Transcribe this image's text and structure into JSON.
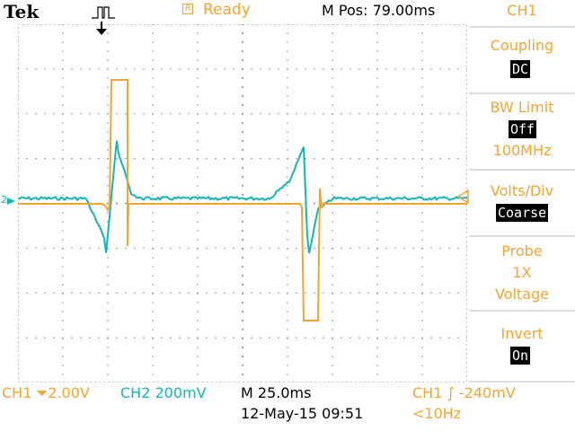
{
  "header": {
    "brand": "Tek",
    "ready_icon": "R",
    "status": "Ready",
    "position": "M Pos: 79.00ms"
  },
  "menu": {
    "title": "CH1",
    "coupling": {
      "label": "Coupling",
      "value": "DC"
    },
    "bw_limit": {
      "label": "BW Limit",
      "value": "Off",
      "sub": "100MHz"
    },
    "volts_div": {
      "label": "Volts/Div",
      "value": "Coarse"
    },
    "probe": {
      "label": "Probe",
      "line2": "1X",
      "line3": "Voltage"
    },
    "invert": {
      "label": "Invert",
      "value": "On"
    }
  },
  "footer": {
    "ch1_scale": "CH1 ⏷2.00V",
    "ch2_scale": "CH2  200mV",
    "timebase": "M 25.0ms",
    "datetime": "12-May-15 09:51",
    "trigger": "CH1 ∫ -240mV",
    "frequency": "<10Hz"
  },
  "markers": {
    "channel_marker": "2",
    "trigger_pos_icon": "down-arrow-icon",
    "trigger_level_icon": "left-arrow-icon"
  },
  "colors": {
    "ch1": "#f2a531",
    "ch2": "#15b5b5",
    "grid": "#8c8c8c",
    "menu_separator": "#dcdcdc"
  }
}
